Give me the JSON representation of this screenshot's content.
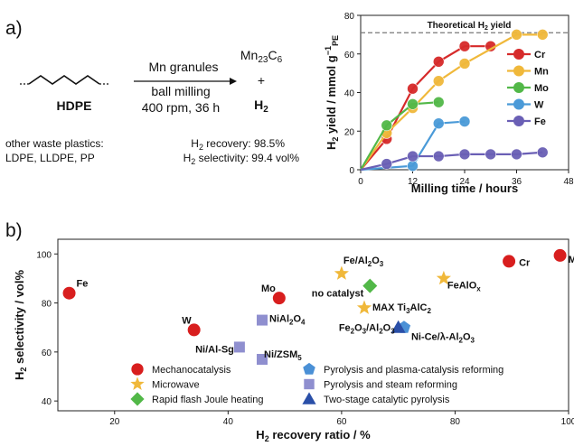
{
  "panel_a": {
    "label": "a)",
    "reactant": "HDPE",
    "reagent": "Mn granules",
    "cond1": "ball milling",
    "cond2": "400 rpm, 36 h",
    "product1": "Mn",
    "product1_sub1": "23",
    "product1_mid": "C",
    "product1_sub2": "6",
    "plus": "+",
    "product2": "H",
    "product2_sub": "2",
    "other_title": "other waste plastics:",
    "other_list": "LDPE, LLDPE, PP",
    "recovery_pre": "H",
    "recovery_sub": "2",
    "recovery_text": " recovery: 98.5%",
    "selectivity_pre": "H",
    "selectivity_sub": "2",
    "selectivity_text": " selectivity: 99.4 vol%"
  },
  "chart_data": [
    {
      "type": "line",
      "xlabel": "Milling time / hours",
      "ylabel_main": "H",
      "ylabel_sub": "2",
      "ylabel_rest": " yield / mmol g",
      "ylabel_sup": "−1",
      "ylabel_sub2": "PE",
      "xlim": [
        0,
        48
      ],
      "ylim": [
        0,
        80
      ],
      "xticks": [
        "0",
        "12",
        "24",
        "36",
        "48"
      ],
      "yticks": [
        "0",
        "20",
        "40",
        "60",
        "80"
      ],
      "reference_line": {
        "y": 71,
        "label_main": "Theoretical H",
        "label_sub": "2",
        "label_rest": " yield",
        "color": "#777777"
      },
      "legend_position": "right",
      "series": [
        {
          "name": "Cr",
          "color": "#d62a2a",
          "x": [
            0,
            6,
            12,
            18,
            24,
            30
          ],
          "y": [
            0,
            16,
            42,
            56,
            64,
            64
          ]
        },
        {
          "name": "Mn",
          "color": "#f0b83a",
          "x": [
            0,
            6,
            12,
            18,
            24,
            36,
            42
          ],
          "y": [
            0,
            19,
            32,
            46,
            55,
            70,
            70
          ]
        },
        {
          "name": "Mo",
          "color": "#52b848",
          "x": [
            0,
            6,
            12,
            18
          ],
          "y": [
            0,
            23,
            34,
            35
          ]
        },
        {
          "name": "W",
          "color": "#4a9ad8",
          "x": [
            0,
            12,
            18,
            24
          ],
          "y": [
            0,
            2,
            24,
            25
          ]
        },
        {
          "name": "Fe",
          "color": "#6a5fb5",
          "x": [
            0,
            6,
            12,
            18,
            24,
            30,
            36,
            42
          ],
          "y": [
            0,
            3,
            7,
            7,
            8,
            8,
            8,
            9
          ]
        }
      ]
    },
    {
      "type": "scatter",
      "panel_label": "b)",
      "xlabel_main": "H",
      "xlabel_sub": "2",
      "xlabel_rest": " recovery ratio / %",
      "ylabel_main": "H",
      "ylabel_sub": "2",
      "ylabel_rest": " selectivity / vol%",
      "xlim": [
        10,
        100
      ],
      "ylim": [
        36,
        106
      ],
      "xticks": [
        "20",
        "40",
        "60",
        "80",
        "100"
      ],
      "yticks": [
        "40",
        "60",
        "80",
        "100"
      ],
      "categories": [
        {
          "name": "Mechanocatalysis",
          "marker": "circle",
          "color": "#d81e1e"
        },
        {
          "name": "Microwave",
          "marker": "star",
          "color": "#f0b83a"
        },
        {
          "name": "Rapid flash Joule heating",
          "marker": "diamond",
          "color": "#52b848"
        },
        {
          "name": "Pyrolysis and plasma-catalysis reforming",
          "marker": "pentagon",
          "color": "#4a90d6"
        },
        {
          "name": "Pyrolysis and steam reforming",
          "marker": "square",
          "color": "#8f8fcf"
        },
        {
          "name": "Two-stage catalytic pyrolysis",
          "marker": "triangle",
          "color": "#2a4fa8"
        }
      ],
      "points": [
        {
          "category": "Mechanocatalysis",
          "x": 12,
          "y": 84,
          "label": "Fe"
        },
        {
          "category": "Mechanocatalysis",
          "x": 34,
          "y": 69,
          "label": "W"
        },
        {
          "category": "Mechanocatalysis",
          "x": 49,
          "y": 82,
          "label": "Mo"
        },
        {
          "category": "Mechanocatalysis",
          "x": 89.5,
          "y": 97,
          "label": "Cr"
        },
        {
          "category": "Mechanocatalysis",
          "x": 98.5,
          "y": 99.4,
          "label": "Mn"
        },
        {
          "category": "Microwave",
          "x": 60,
          "y": 92,
          "label": "Fe/Al2O3"
        },
        {
          "category": "Microwave",
          "x": 78,
          "y": 90,
          "label": "FeAlOx"
        },
        {
          "category": "Microwave",
          "x": 64,
          "y": 78,
          "label": "MAX Ti3AlC2"
        },
        {
          "category": "Rapid flash Joule heating",
          "x": 65,
          "y": 87,
          "label": "no catalyst"
        },
        {
          "category": "Pyrolysis and plasma-catalysis reforming",
          "x": 71,
          "y": 70,
          "label": "Ni-Ce/λ-Al2O3"
        },
        {
          "category": "Pyrolysis and steam reforming",
          "x": 46,
          "y": 73,
          "label": "NiAl2O4"
        },
        {
          "category": "Pyrolysis and steam reforming",
          "x": 42,
          "y": 62,
          "label": "Ni/Al-Sg"
        },
        {
          "category": "Pyrolysis and steam reforming",
          "x": 46,
          "y": 57,
          "label": "Ni/ZSM5"
        },
        {
          "category": "Two-stage catalytic pyrolysis",
          "x": 70,
          "y": 70,
          "label": "Fe2O3/Al2O3"
        }
      ]
    }
  ]
}
